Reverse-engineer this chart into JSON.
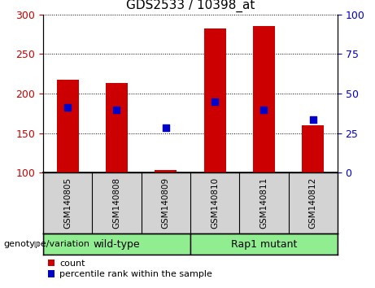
{
  "title": "GDS2533 / 10398_at",
  "samples": [
    "GSM140805",
    "GSM140808",
    "GSM140809",
    "GSM140810",
    "GSM140811",
    "GSM140812"
  ],
  "counts": [
    218,
    213,
    103,
    282,
    285,
    160
  ],
  "percentile_values": [
    183,
    180,
    157,
    190,
    180,
    167
  ],
  "baseline": 100,
  "ylim_left": [
    100,
    300
  ],
  "ylim_right": [
    0,
    100
  ],
  "yticks_left": [
    100,
    150,
    200,
    250,
    300
  ],
  "yticks_right": [
    0,
    25,
    50,
    75,
    100
  ],
  "bar_color": "#cc0000",
  "percentile_color": "#0000cc",
  "bar_width": 0.45,
  "group_labels": [
    "wild-type",
    "Rap1 mutant"
  ],
  "group_colors": [
    "#90ee90",
    "#90ee90"
  ],
  "group_label_text": "genotype/variation",
  "legend_count": "count",
  "legend_percentile": "percentile rank within the sample",
  "tick_color_left": "#cc0000",
  "tick_color_right": "#0000cc",
  "cell_bg_color": "#d3d3d3",
  "title_fontsize": 11
}
